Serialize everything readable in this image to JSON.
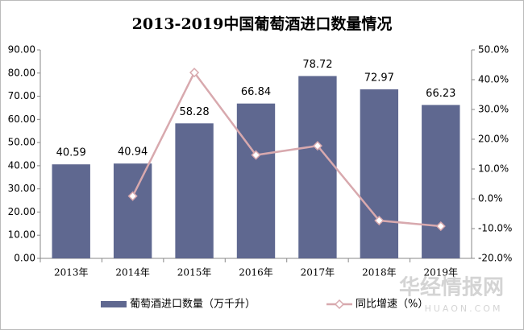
{
  "chart_data": {
    "type": "bar_line",
    "title": "2013-2019中国葡萄酒进口数量情况",
    "categories": [
      "2013年",
      "2014年",
      "2015年",
      "2016年",
      "2017年",
      "2018年",
      "2019年"
    ],
    "series": [
      {
        "name": "葡萄酒进口数量（万千升）",
        "type": "bar",
        "color": "#5f6890",
        "values": [
          40.59,
          40.94,
          58.28,
          66.84,
          78.72,
          72.97,
          66.23
        ]
      },
      {
        "name": "同比增速（%）",
        "type": "line",
        "axis": "y2",
        "color": "#d8a9ae",
        "values": [
          null,
          0.9,
          42.4,
          14.7,
          17.8,
          -7.3,
          -9.2
        ]
      }
    ],
    "ylim": [
      0,
      90
    ],
    "yticks": [
      {
        "value": 0,
        "label": "0.00"
      },
      {
        "value": 10,
        "label": "10.00"
      },
      {
        "value": 20,
        "label": "20.00"
      },
      {
        "value": 30,
        "label": "30.00"
      },
      {
        "value": 40,
        "label": "40.00"
      },
      {
        "value": 50,
        "label": "50.00"
      },
      {
        "value": 60,
        "label": "60.00"
      },
      {
        "value": 70,
        "label": "70.00"
      },
      {
        "value": 80,
        "label": "80.00"
      },
      {
        "value": 90,
        "label": "90.00"
      }
    ],
    "y2lim": [
      -20,
      50
    ],
    "y2ticks": [
      {
        "value": -20,
        "label": "-20.0%"
      },
      {
        "value": -10,
        "label": "-10.0%"
      },
      {
        "value": 0,
        "label": "0.0%"
      },
      {
        "value": 10,
        "label": "10.0%"
      },
      {
        "value": 20,
        "label": "20.0%"
      },
      {
        "value": 30,
        "label": "30.0%"
      },
      {
        "value": 40,
        "label": "40.0%"
      },
      {
        "value": 50,
        "label": "50.0%"
      }
    ],
    "legend": "bottom",
    "watermark": {
      "text": "华经情报网",
      "url": "HUAON.COM"
    }
  }
}
